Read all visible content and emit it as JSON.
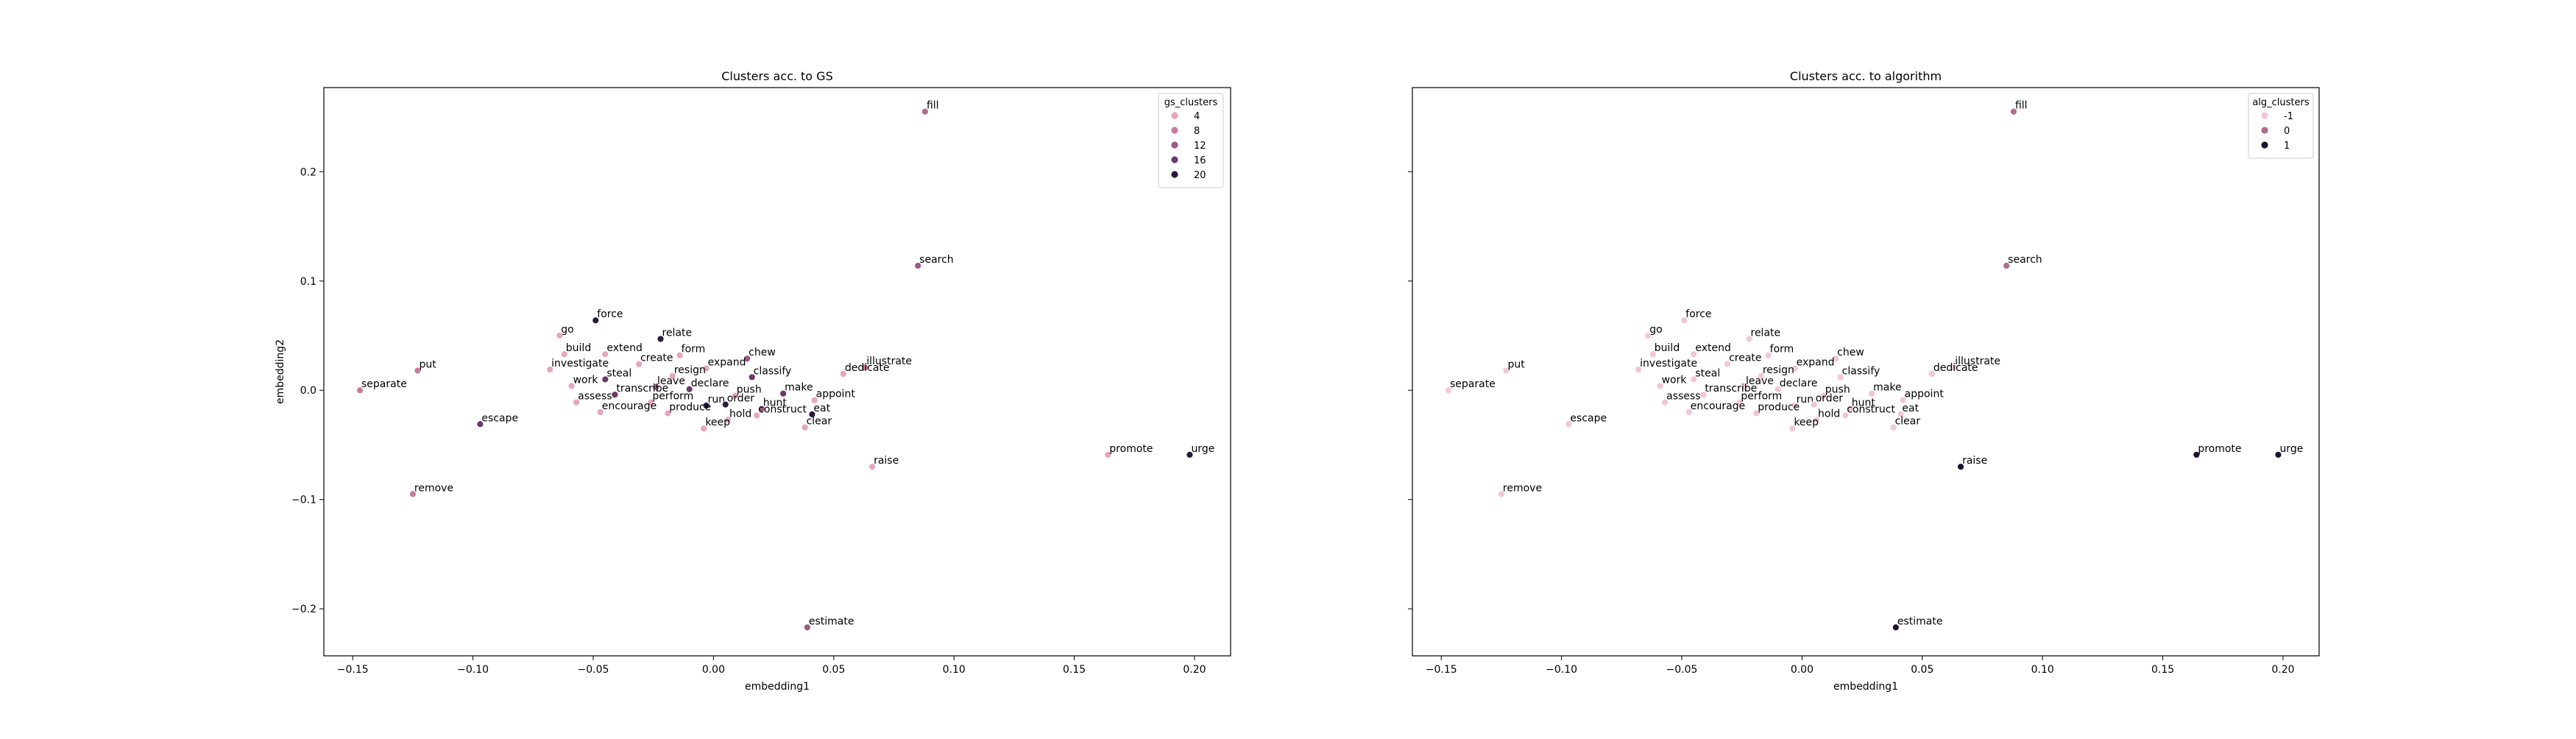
{
  "figure": {
    "charts_note_none": "",
    "shared_xlabel": "embedding1",
    "shared_ylabel": "embedding2"
  },
  "chart_data": [
    {
      "type": "scatter",
      "title": "Clusters acc. to GS",
      "xlabel": "embedding1",
      "ylabel": "embedding2",
      "xlim": [
        -0.162,
        0.215
      ],
      "ylim": [
        -0.243,
        0.277
      ],
      "xticks": [
        -0.15,
        -0.1,
        -0.05,
        0.0,
        0.05,
        0.1,
        0.15,
        0.2
      ],
      "xtick_labels": [
        "−0.15",
        "−0.10",
        "−0.05",
        "0.00",
        "0.05",
        "0.10",
        "0.15",
        "0.20"
      ],
      "yticks": [
        -0.2,
        -0.1,
        0.0,
        0.1,
        0.2
      ],
      "ytick_labels": [
        "−0.2",
        "−0.1",
        "0.0",
        "0.1",
        "0.2"
      ],
      "legend": {
        "title": "gs_clusters",
        "placement": "upper right",
        "entries": [
          {
            "label": "4",
            "color": "#e8a5bc"
          },
          {
            "label": "8",
            "color": "#c97b9e"
          },
          {
            "label": "12",
            "color": "#9c5a84"
          },
          {
            "label": "16",
            "color": "#6a3a6a"
          },
          {
            "label": "20",
            "color": "#2c1a3e"
          }
        ]
      },
      "points": [
        {
          "word": "fill",
          "x": 0.088,
          "y": 0.255,
          "color": "#b36a8f"
        },
        {
          "word": "search",
          "x": 0.085,
          "y": 0.114,
          "color": "#9c5a84"
        },
        {
          "word": "go",
          "x": -0.064,
          "y": 0.05,
          "color": "#e8a5bc"
        },
        {
          "word": "force",
          "x": -0.049,
          "y": 0.064,
          "color": "#2c1a3e"
        },
        {
          "word": "relate",
          "x": -0.022,
          "y": 0.047,
          "color": "#2c1a3e"
        },
        {
          "word": "build",
          "x": -0.062,
          "y": 0.033,
          "color": "#e8a5bc"
        },
        {
          "word": "extend",
          "x": -0.045,
          "y": 0.033,
          "color": "#e8a5bc"
        },
        {
          "word": "form",
          "x": -0.014,
          "y": 0.032,
          "color": "#e8a5bc"
        },
        {
          "word": "chew",
          "x": 0.014,
          "y": 0.029,
          "color": "#9c5a84"
        },
        {
          "word": "illustrate",
          "x": 0.063,
          "y": 0.021,
          "color": "#c97b9e"
        },
        {
          "word": "put",
          "x": -0.123,
          "y": 0.018,
          "color": "#c97b9e"
        },
        {
          "word": "create",
          "x": -0.031,
          "y": 0.024,
          "color": "#e8a5bc"
        },
        {
          "word": "expand",
          "x": -0.003,
          "y": 0.02,
          "color": "#e8a5bc"
        },
        {
          "word": "investigate",
          "x": -0.068,
          "y": 0.019,
          "color": "#e8a5bc"
        },
        {
          "word": "resign",
          "x": -0.017,
          "y": 0.013,
          "color": "#e8a5bc"
        },
        {
          "word": "classify",
          "x": 0.016,
          "y": 0.012,
          "color": "#6a3a6a"
        },
        {
          "word": "dedicate",
          "x": 0.054,
          "y": 0.015,
          "color": "#e8a5bc"
        },
        {
          "word": "steal",
          "x": -0.045,
          "y": 0.01,
          "color": "#6a3a6a"
        },
        {
          "word": "separate",
          "x": -0.147,
          "y": 0.0,
          "color": "#c97b9e"
        },
        {
          "word": "work",
          "x": -0.059,
          "y": 0.004,
          "color": "#e8a5bc"
        },
        {
          "word": "leave",
          "x": -0.024,
          "y": 0.003,
          "color": "#9c5a84"
        },
        {
          "word": "declare",
          "x": -0.01,
          "y": 0.001,
          "color": "#6a3a6a"
        },
        {
          "word": "make",
          "x": 0.029,
          "y": -0.003,
          "color": "#6a3a6a"
        },
        {
          "word": "transcribe",
          "x": -0.041,
          "y": -0.004,
          "color": "#6a3a6a"
        },
        {
          "word": "push",
          "x": 0.009,
          "y": -0.005,
          "color": "#e8a5bc"
        },
        {
          "word": "appoint",
          "x": 0.042,
          "y": -0.009,
          "color": "#e8a5bc"
        },
        {
          "word": "assess",
          "x": -0.057,
          "y": -0.011,
          "color": "#e8a5bc"
        },
        {
          "word": "perform",
          "x": -0.026,
          "y": -0.011,
          "color": "#e8a5bc"
        },
        {
          "word": "run",
          "x": -0.003,
          "y": -0.014,
          "color": "#2c1a3e"
        },
        {
          "word": "order",
          "x": 0.005,
          "y": -0.013,
          "color": "#2c1a3e"
        },
        {
          "word": "hunt",
          "x": 0.02,
          "y": -0.017,
          "color": "#9c5a84"
        },
        {
          "word": "produce",
          "x": -0.019,
          "y": -0.021,
          "color": "#e8a5bc"
        },
        {
          "word": "construct",
          "x": 0.018,
          "y": -0.023,
          "color": "#e8a5bc"
        },
        {
          "word": "eat",
          "x": 0.041,
          "y": -0.022,
          "color": "#2c1a3e"
        },
        {
          "word": "encourage",
          "x": -0.047,
          "y": -0.02,
          "color": "#e8a5bc"
        },
        {
          "word": "escape",
          "x": -0.097,
          "y": -0.031,
          "color": "#6a3a6a"
        },
        {
          "word": "hold",
          "x": 0.006,
          "y": -0.027,
          "color": "#e8a5bc"
        },
        {
          "word": "keep",
          "x": -0.004,
          "y": -0.035,
          "color": "#e8a5bc"
        },
        {
          "word": "clear",
          "x": 0.038,
          "y": -0.034,
          "color": "#e8a5bc"
        },
        {
          "word": "promote",
          "x": 0.164,
          "y": -0.059,
          "color": "#e8a5bc"
        },
        {
          "word": "urge",
          "x": 0.198,
          "y": -0.059,
          "color": "#2c1a3e"
        },
        {
          "word": "raise",
          "x": 0.066,
          "y": -0.07,
          "color": "#e8a5bc"
        },
        {
          "word": "remove",
          "x": -0.125,
          "y": -0.095,
          "color": "#c97b9e"
        },
        {
          "word": "estimate",
          "x": 0.039,
          "y": -0.217,
          "color": "#9c5a84"
        }
      ]
    },
    {
      "type": "scatter",
      "title": "Clusters acc. to algorithm",
      "xlabel": "embedding1",
      "ylabel": "",
      "xlim": [
        -0.162,
        0.215
      ],
      "ylim": [
        -0.243,
        0.277
      ],
      "xticks": [
        -0.15,
        -0.1,
        -0.05,
        0.0,
        0.05,
        0.1,
        0.15,
        0.2
      ],
      "xtick_labels": [
        "−0.15",
        "−0.10",
        "−0.05",
        "0.00",
        "0.05",
        "0.10",
        "0.15",
        "0.20"
      ],
      "yticks": [
        -0.2,
        -0.1,
        0.0,
        0.1,
        0.2
      ],
      "ytick_labels": [
        "",
        "",
        "",
        "",
        ""
      ],
      "legend": {
        "title": "alg_clusters",
        "placement": "upper right",
        "entries": [
          {
            "label": "-1",
            "color": "#f2c6d5"
          },
          {
            "label": "0",
            "color": "#b36a8f"
          },
          {
            "label": "1",
            "color": "#1e1030"
          }
        ]
      },
      "points": [
        {
          "word": "fill",
          "x": 0.088,
          "y": 0.255,
          "color": "#b36a8f"
        },
        {
          "word": "search",
          "x": 0.085,
          "y": 0.114,
          "color": "#b36a8f"
        },
        {
          "word": "go",
          "x": -0.064,
          "y": 0.05,
          "color": "#f2c6d5"
        },
        {
          "word": "force",
          "x": -0.049,
          "y": 0.064,
          "color": "#f2c6d5"
        },
        {
          "word": "relate",
          "x": -0.022,
          "y": 0.047,
          "color": "#f2c6d5"
        },
        {
          "word": "build",
          "x": -0.062,
          "y": 0.033,
          "color": "#f2c6d5"
        },
        {
          "word": "extend",
          "x": -0.045,
          "y": 0.033,
          "color": "#f2c6d5"
        },
        {
          "word": "form",
          "x": -0.014,
          "y": 0.032,
          "color": "#f2c6d5"
        },
        {
          "word": "chew",
          "x": 0.014,
          "y": 0.029,
          "color": "#f2c6d5"
        },
        {
          "word": "illustrate",
          "x": 0.063,
          "y": 0.021,
          "color": "#f2c6d5"
        },
        {
          "word": "put",
          "x": -0.123,
          "y": 0.018,
          "color": "#f2c6d5"
        },
        {
          "word": "create",
          "x": -0.031,
          "y": 0.024,
          "color": "#f2c6d5"
        },
        {
          "word": "expand",
          "x": -0.003,
          "y": 0.02,
          "color": "#f2c6d5"
        },
        {
          "word": "investigate",
          "x": -0.068,
          "y": 0.019,
          "color": "#f2c6d5"
        },
        {
          "word": "resign",
          "x": -0.017,
          "y": 0.013,
          "color": "#f2c6d5"
        },
        {
          "word": "classify",
          "x": 0.016,
          "y": 0.012,
          "color": "#f2c6d5"
        },
        {
          "word": "dedicate",
          "x": 0.054,
          "y": 0.015,
          "color": "#f2c6d5"
        },
        {
          "word": "steal",
          "x": -0.045,
          "y": 0.01,
          "color": "#f2c6d5"
        },
        {
          "word": "separate",
          "x": -0.147,
          "y": 0.0,
          "color": "#f2c6d5"
        },
        {
          "word": "work",
          "x": -0.059,
          "y": 0.004,
          "color": "#f2c6d5"
        },
        {
          "word": "leave",
          "x": -0.024,
          "y": 0.003,
          "color": "#f2c6d5"
        },
        {
          "word": "declare",
          "x": -0.01,
          "y": 0.001,
          "color": "#f2c6d5"
        },
        {
          "word": "make",
          "x": 0.029,
          "y": -0.003,
          "color": "#f2c6d5"
        },
        {
          "word": "transcribe",
          "x": -0.041,
          "y": -0.004,
          "color": "#f2c6d5"
        },
        {
          "word": "push",
          "x": 0.009,
          "y": -0.005,
          "color": "#f2c6d5"
        },
        {
          "word": "appoint",
          "x": 0.042,
          "y": -0.009,
          "color": "#f2c6d5"
        },
        {
          "word": "assess",
          "x": -0.057,
          "y": -0.011,
          "color": "#f2c6d5"
        },
        {
          "word": "perform",
          "x": -0.026,
          "y": -0.011,
          "color": "#f2c6d5"
        },
        {
          "word": "run",
          "x": -0.003,
          "y": -0.014,
          "color": "#f2c6d5"
        },
        {
          "word": "order",
          "x": 0.005,
          "y": -0.013,
          "color": "#f2c6d5"
        },
        {
          "word": "hunt",
          "x": 0.02,
          "y": -0.017,
          "color": "#f2c6d5"
        },
        {
          "word": "produce",
          "x": -0.019,
          "y": -0.021,
          "color": "#f2c6d5"
        },
        {
          "word": "construct",
          "x": 0.018,
          "y": -0.023,
          "color": "#f2c6d5"
        },
        {
          "word": "eat",
          "x": 0.041,
          "y": -0.022,
          "color": "#f2c6d5"
        },
        {
          "word": "encourage",
          "x": -0.047,
          "y": -0.02,
          "color": "#f2c6d5"
        },
        {
          "word": "escape",
          "x": -0.097,
          "y": -0.031,
          "color": "#f2c6d5"
        },
        {
          "word": "hold",
          "x": 0.006,
          "y": -0.027,
          "color": "#f2c6d5"
        },
        {
          "word": "keep",
          "x": -0.004,
          "y": -0.035,
          "color": "#f2c6d5"
        },
        {
          "word": "clear",
          "x": 0.038,
          "y": -0.034,
          "color": "#f2c6d5"
        },
        {
          "word": "promote",
          "x": 0.164,
          "y": -0.059,
          "color": "#1e1030"
        },
        {
          "word": "urge",
          "x": 0.198,
          "y": -0.059,
          "color": "#1e1030"
        },
        {
          "word": "raise",
          "x": 0.066,
          "y": -0.07,
          "color": "#1e1030"
        },
        {
          "word": "remove",
          "x": -0.125,
          "y": -0.095,
          "color": "#f2c6d5"
        },
        {
          "word": "estimate",
          "x": 0.039,
          "y": -0.217,
          "color": "#1e1030"
        }
      ]
    }
  ]
}
